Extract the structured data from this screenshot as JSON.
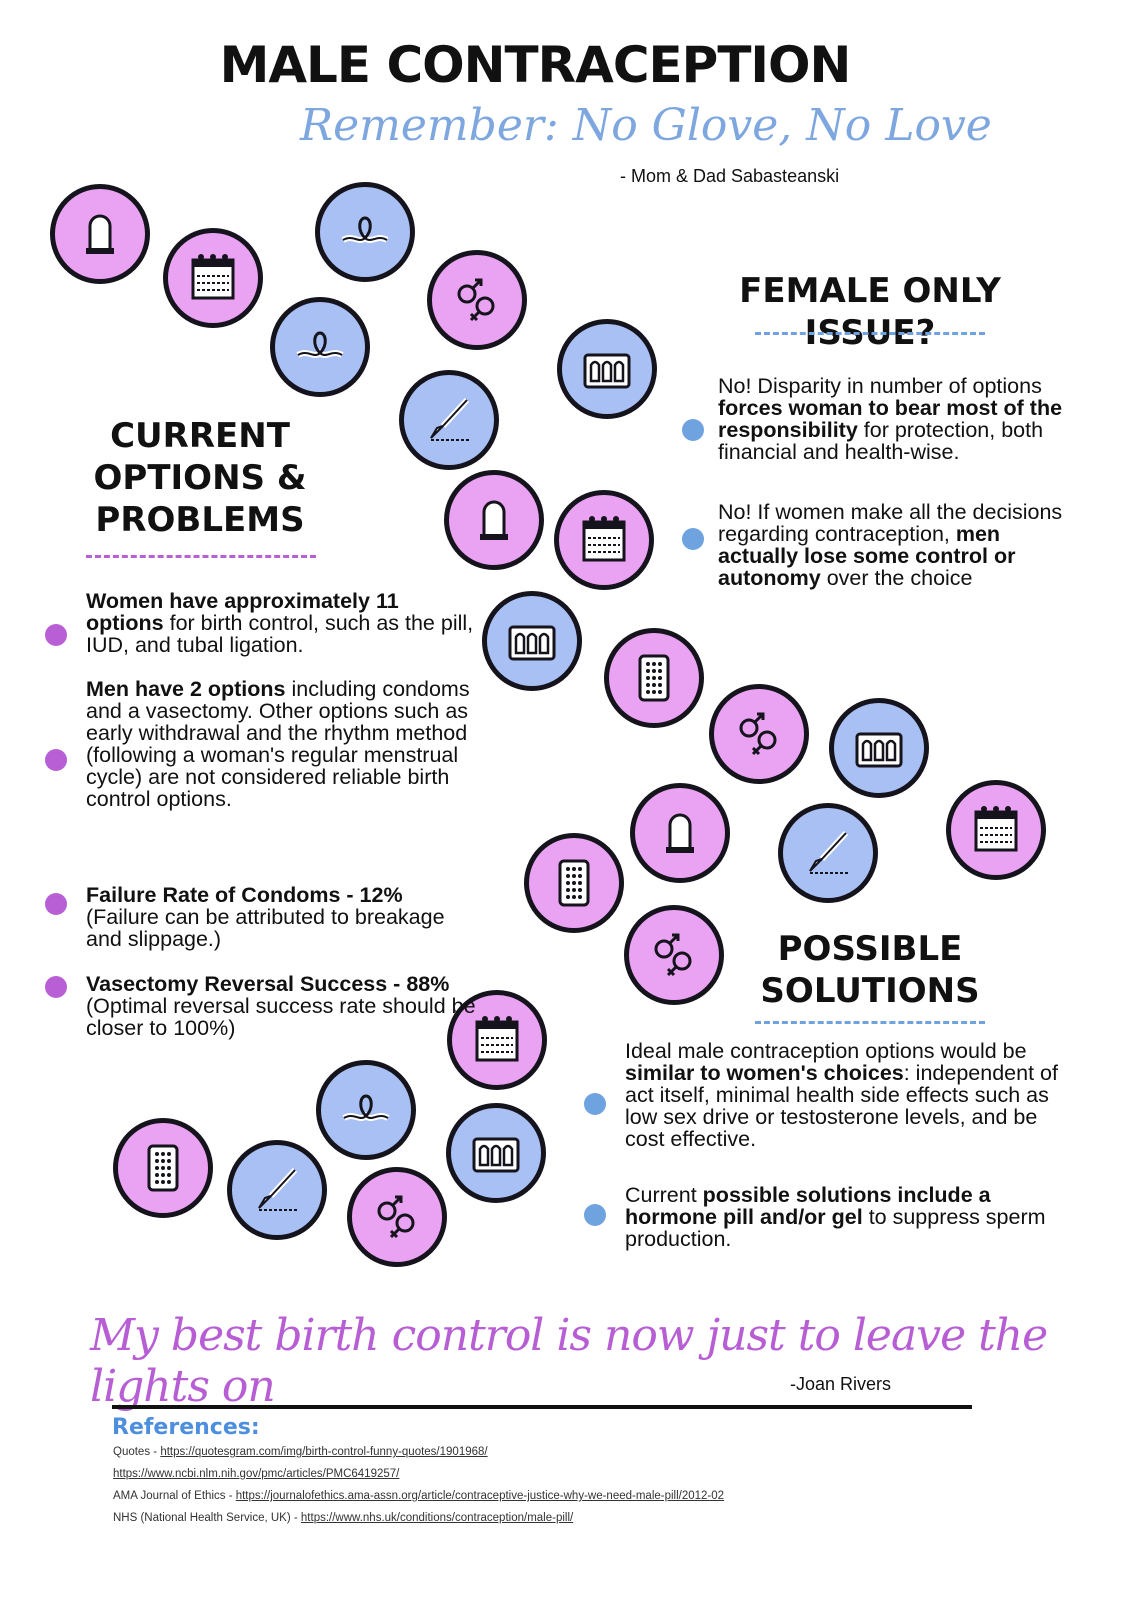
{
  "title": "Male Contraception",
  "subtitle": "Remember: No Glove, No Love",
  "subtitle_attribution": "- Mom & Dad Sabasteanski",
  "colors": {
    "pink": "#e9a3f2",
    "blue": "#a9c0f5",
    "purple_dot": "#b95fd6",
    "blue_dot": "#6fa3e0",
    "outline": "#15131c"
  },
  "icons": [
    "condom-icon",
    "calendar-icon",
    "iud-icon",
    "gender-symbols-icon",
    "iud-icon",
    "ampoules-icon",
    "scalpel-icon",
    "condom-icon",
    "calendar-icon",
    "ampoules-icon",
    "pill-pack-icon",
    "gender-symbols-icon",
    "ampoules-icon",
    "condom-icon",
    "scalpel-icon",
    "calendar-icon",
    "pill-pack-icon",
    "gender-symbols-icon",
    "calendar-icon",
    "iud-icon",
    "ampoules-icon",
    "pill-pack-icon",
    "scalpel-icon",
    "gender-symbols-icon"
  ],
  "current": {
    "heading": "Current Options & Problems",
    "bullets": [
      {
        "bold": "Women have approximately 11 options",
        "text": " for birth control, such as the pill, IUD, and tubal ligation."
      },
      {
        "bold": "Men have 2 options",
        "text": " including condoms and a vasectomy.  Other options such as early withdrawal and the rhythm method (following a woman's regular menstrual cycle) are not considered reliable birth control options."
      },
      {
        "bold": "Failure Rate of Condoms - 12%",
        "text": " (Failure can be attributed to breakage and slippage.)"
      },
      {
        "bold": "Vasectomy Reversal Success - 88%",
        "text": " (Optimal reversal success rate should be closer to 100%)"
      }
    ]
  },
  "female": {
    "heading": "Female only issue?",
    "bullets": [
      {
        "pre": "No!  Disparity in number of options ",
        "bold": "forces woman to bear most of the responsibility",
        "post": " for protection,  both financial and health-wise."
      },
      {
        "pre": "No!  If women make all the decisions regarding contraception, ",
        "bold": "men actually lose some control or autonomy",
        "post": " over the choice"
      }
    ]
  },
  "solutions": {
    "heading": "Possible Solutions",
    "bullets": [
      {
        "pre": "Ideal male contraception options would be ",
        "bold": "similar to women's choices",
        "post": ":  independent of act itself, minimal health side effects such as low sex drive or testosterone levels, and be cost effective."
      },
      {
        "pre": "Current ",
        "bold": "possible solutions include a hormone pill and/or gel",
        "post": " to suppress sperm production."
      }
    ]
  },
  "quote": "My best birth control is now just to leave the lights on",
  "quote_attribution": "-Joan Rivers",
  "references": {
    "heading": "References:",
    "items": [
      {
        "label": "Quotes - ",
        "url": "https://quotesgram.com/img/birth-control-funny-quotes/1901968/"
      },
      {
        "label": "",
        "url": "https://www.ncbi.nlm.nih.gov/pmc/articles/PMC6419257/"
      },
      {
        "label": "AMA Journal of Ethics - ",
        "url": "https://journalofethics.ama-assn.org/article/contraceptive-justice-why-we-need-male-pill/2012-02"
      },
      {
        "label": "NHS (National Health Service, UK) - ",
        "url": "https://www.nhs.uk/conditions/contraception/male-pill/"
      }
    ]
  }
}
